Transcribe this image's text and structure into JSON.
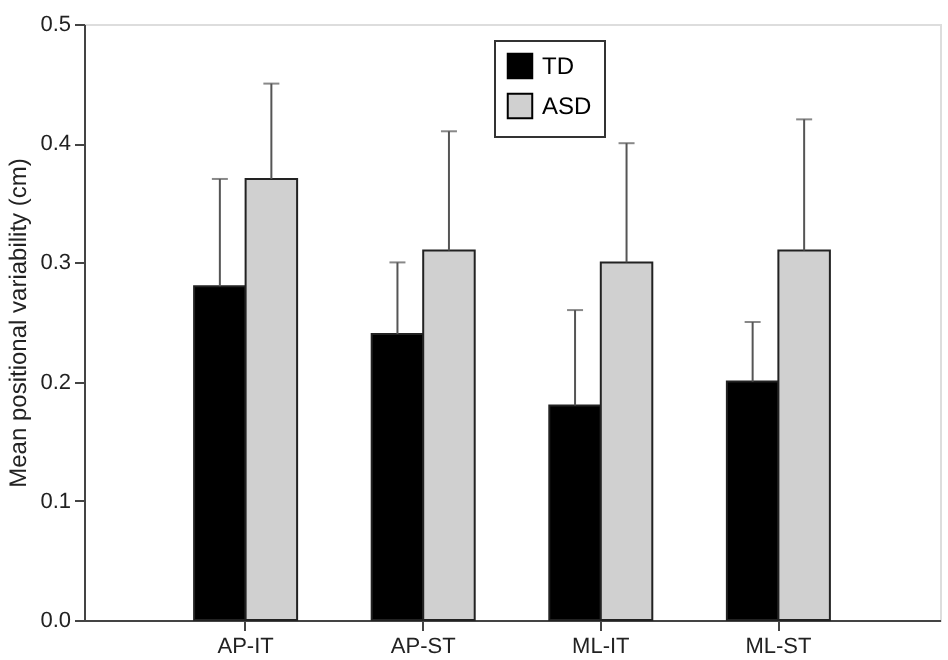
{
  "chart_data": {
    "type": "bar",
    "ylabel": "Mean positional variability (cm)",
    "categories": [
      "AP-IT",
      "AP-ST",
      "ML-IT",
      "ML-ST"
    ],
    "series": [
      {
        "name": "TD",
        "color": "#000000",
        "values": [
          0.28,
          0.24,
          0.18,
          0.2
        ],
        "errors": [
          [
            0.28,
            0.37
          ],
          [
            0.24,
            0.3
          ],
          [
            0.18,
            0.26
          ],
          [
            0.2,
            0.25
          ]
        ]
      },
      {
        "name": "ASD",
        "color": "#d0d0d0",
        "values": [
          0.37,
          0.31,
          0.3,
          0.31
        ],
        "errors": [
          [
            0.37,
            0.45
          ],
          [
            0.31,
            0.41
          ],
          [
            0.3,
            0.4
          ],
          [
            0.31,
            0.42
          ]
        ]
      }
    ],
    "ylim": [
      0,
      0.5
    ],
    "yticks": [
      {
        "value": 0,
        "label": "0.0"
      },
      0.1,
      0.2,
      0.3,
      0.4,
      0.5
    ],
    "grid": false,
    "legend": "top"
  }
}
